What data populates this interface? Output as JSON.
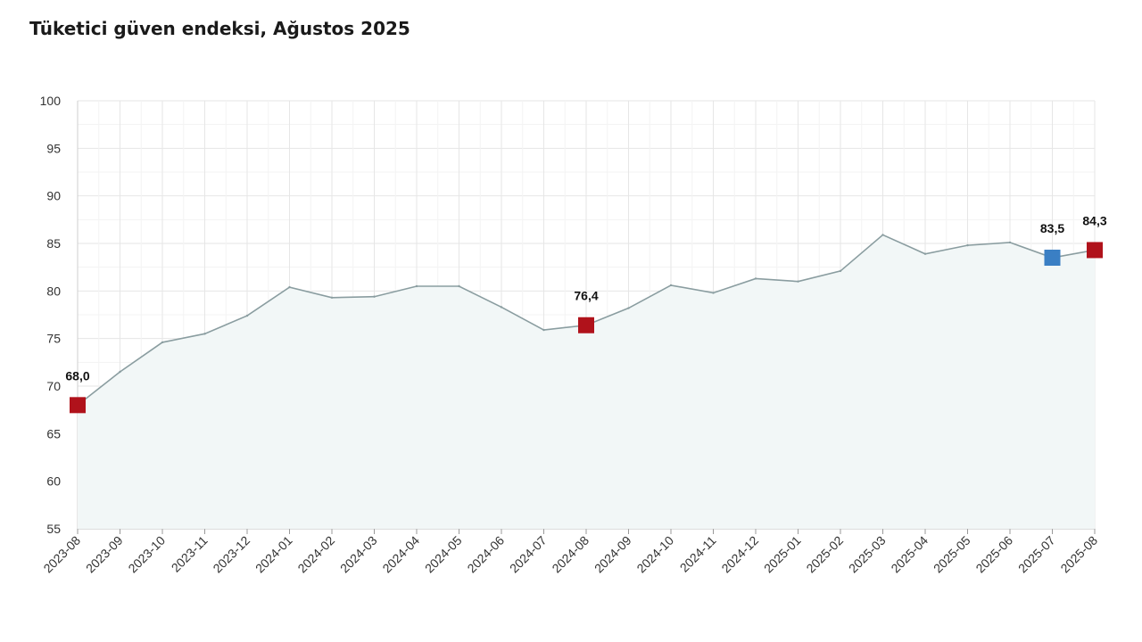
{
  "chart_data": {
    "type": "line",
    "title": "Tüketici güven endeksi, Ağustos 2025",
    "xlabel": "",
    "ylabel": "",
    "ylim": [
      55,
      100
    ],
    "yticks": [
      55,
      60,
      65,
      70,
      75,
      80,
      85,
      90,
      95,
      100
    ],
    "grid": true,
    "categories": [
      "2023-08",
      "2023-09",
      "2023-10",
      "2023-11",
      "2023-12",
      "2024-01",
      "2024-02",
      "2024-03",
      "2024-04",
      "2024-05",
      "2024-06",
      "2024-07",
      "2024-08",
      "2024-09",
      "2024-10",
      "2024-11",
      "2024-12",
      "2025-01",
      "2025-02",
      "2025-03",
      "2025-04",
      "2025-05",
      "2025-06",
      "2025-07",
      "2025-08"
    ],
    "series": [
      {
        "values": [
          68.0,
          71.5,
          74.6,
          75.5,
          77.4,
          80.4,
          79.3,
          79.4,
          80.5,
          80.5,
          78.3,
          75.9,
          76.4,
          78.2,
          80.6,
          79.8,
          81.3,
          81.0,
          82.1,
          85.9,
          83.9,
          84.8,
          85.1,
          83.5,
          84.3
        ],
        "color": "#8a9da0"
      }
    ],
    "highlighted_points": [
      {
        "index": 0,
        "label": "68,0",
        "color": "#b0121b"
      },
      {
        "index": 12,
        "label": "76,4",
        "color": "#b0121b"
      },
      {
        "index": 23,
        "label": "83,5",
        "color": "#3a7fc4"
      },
      {
        "index": 24,
        "label": "84,3",
        "color": "#b0121b"
      }
    ]
  }
}
